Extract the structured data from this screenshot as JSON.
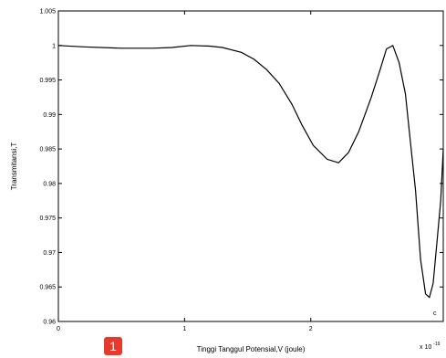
{
  "chart_data": {
    "type": "line",
    "xlabel": "Tinggi Tanggul Potensial,V (joule)",
    "ylabel": "Transmitansi,T",
    "x_multiplier_label": "x 10",
    "x_multiplier_exp": "-19",
    "xlim": [
      0,
      3.05
    ],
    "ylim": [
      0.96,
      1.005
    ],
    "x_ticks": [
      {
        "value": 0,
        "label": "0"
      },
      {
        "value": 1,
        "label": "1"
      },
      {
        "value": 2,
        "label": "2"
      }
    ],
    "y_ticks": [
      {
        "value": 0.96,
        "label": "0.96"
      },
      {
        "value": 0.965,
        "label": "0.965"
      },
      {
        "value": 0.97,
        "label": "0.97"
      },
      {
        "value": 0.975,
        "label": "0.975"
      },
      {
        "value": 0.98,
        "label": "0.98"
      },
      {
        "value": 0.985,
        "label": "0.985"
      },
      {
        "value": 0.99,
        "label": "0.99"
      },
      {
        "value": 0.995,
        "label": "0.995"
      },
      {
        "value": 1,
        "label": "1"
      },
      {
        "value": 1.005,
        "label": "1.005"
      }
    ],
    "grid": false,
    "annotation": "c",
    "series": [
      {
        "color": "#000000",
        "x": [
          0,
          0.2,
          0.5,
          0.75,
          0.9,
          1.05,
          1.2,
          1.3,
          1.45,
          1.55,
          1.65,
          1.75,
          1.85,
          1.93,
          2.02,
          2.13,
          2.22,
          2.3,
          2.38,
          2.48,
          2.55,
          2.6,
          2.65,
          2.7,
          2.75,
          2.79,
          2.83,
          2.87,
          2.91,
          2.94,
          2.97,
          3.0,
          3.03,
          3.05
        ],
        "y": [
          1.0,
          0.9998,
          0.9996,
          0.9996,
          0.9997,
          1.0,
          0.9999,
          0.9997,
          0.999,
          0.998,
          0.9965,
          0.9945,
          0.9915,
          0.9885,
          0.9855,
          0.9835,
          0.983,
          0.9845,
          0.9875,
          0.9925,
          0.9965,
          0.9995,
          1.0,
          0.9975,
          0.993,
          0.986,
          0.979,
          0.969,
          0.964,
          0.9635,
          0.9655,
          0.9715,
          0.9775,
          0.985
        ]
      }
    ]
  },
  "badge_label": "1"
}
